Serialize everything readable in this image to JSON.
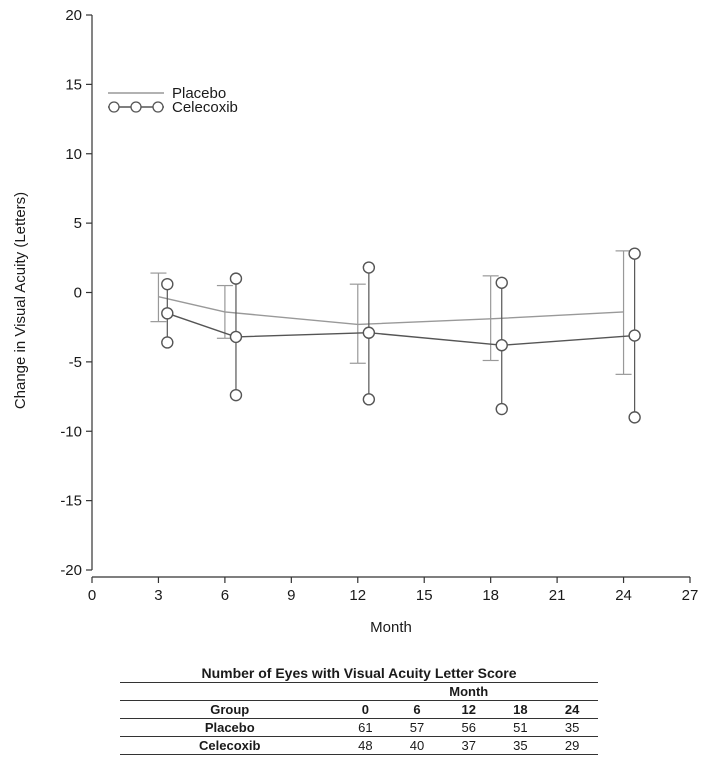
{
  "chart_data": {
    "type": "line",
    "title": "",
    "xlabel": "Month",
    "ylabel": "Change in Visual Acuity (Letters)",
    "xlim": [
      0,
      27
    ],
    "ylim": [
      -20,
      20
    ],
    "xticks": [
      0,
      3,
      6,
      9,
      12,
      15,
      18,
      21,
      24,
      27
    ],
    "yticks": [
      20,
      15,
      10,
      5,
      0,
      -5,
      -10,
      -15,
      -20
    ],
    "grid": false,
    "legend": {
      "position": "top-left"
    },
    "series": [
      {
        "name": "Placebo",
        "marker": "none",
        "color": "#999999",
        "x": [
          3,
          6,
          12,
          18,
          24
        ],
        "y": [
          -0.3,
          -1.4,
          -2.3,
          -1.9,
          -1.4
        ],
        "lower": [
          -2.1,
          -3.3,
          -5.1,
          -4.9,
          -5.9
        ],
        "upper": [
          1.4,
          0.5,
          0.6,
          1.2,
          3.0
        ]
      },
      {
        "name": "Celecoxib",
        "marker": "open-circle",
        "color": "#555555",
        "x": [
          3.4,
          6.5,
          12.5,
          18.5,
          24.5
        ],
        "y": [
          -1.5,
          -3.2,
          -2.9,
          -3.8,
          -3.1
        ],
        "lower": [
          -3.6,
          -7.4,
          -7.7,
          -8.4,
          -9.0
        ],
        "upper": [
          0.6,
          1.0,
          1.8,
          0.7,
          2.8
        ]
      }
    ]
  },
  "table": {
    "title": "Number of Eyes with Visual Acuity Letter Score",
    "span_header": "Month",
    "columns": [
      "Group",
      "0",
      "6",
      "12",
      "18",
      "24"
    ],
    "rows": [
      [
        "Placebo",
        "61",
        "57",
        "56",
        "51",
        "35"
      ],
      [
        "Celecoxib",
        "48",
        "40",
        "37",
        "35",
        "29"
      ]
    ]
  }
}
